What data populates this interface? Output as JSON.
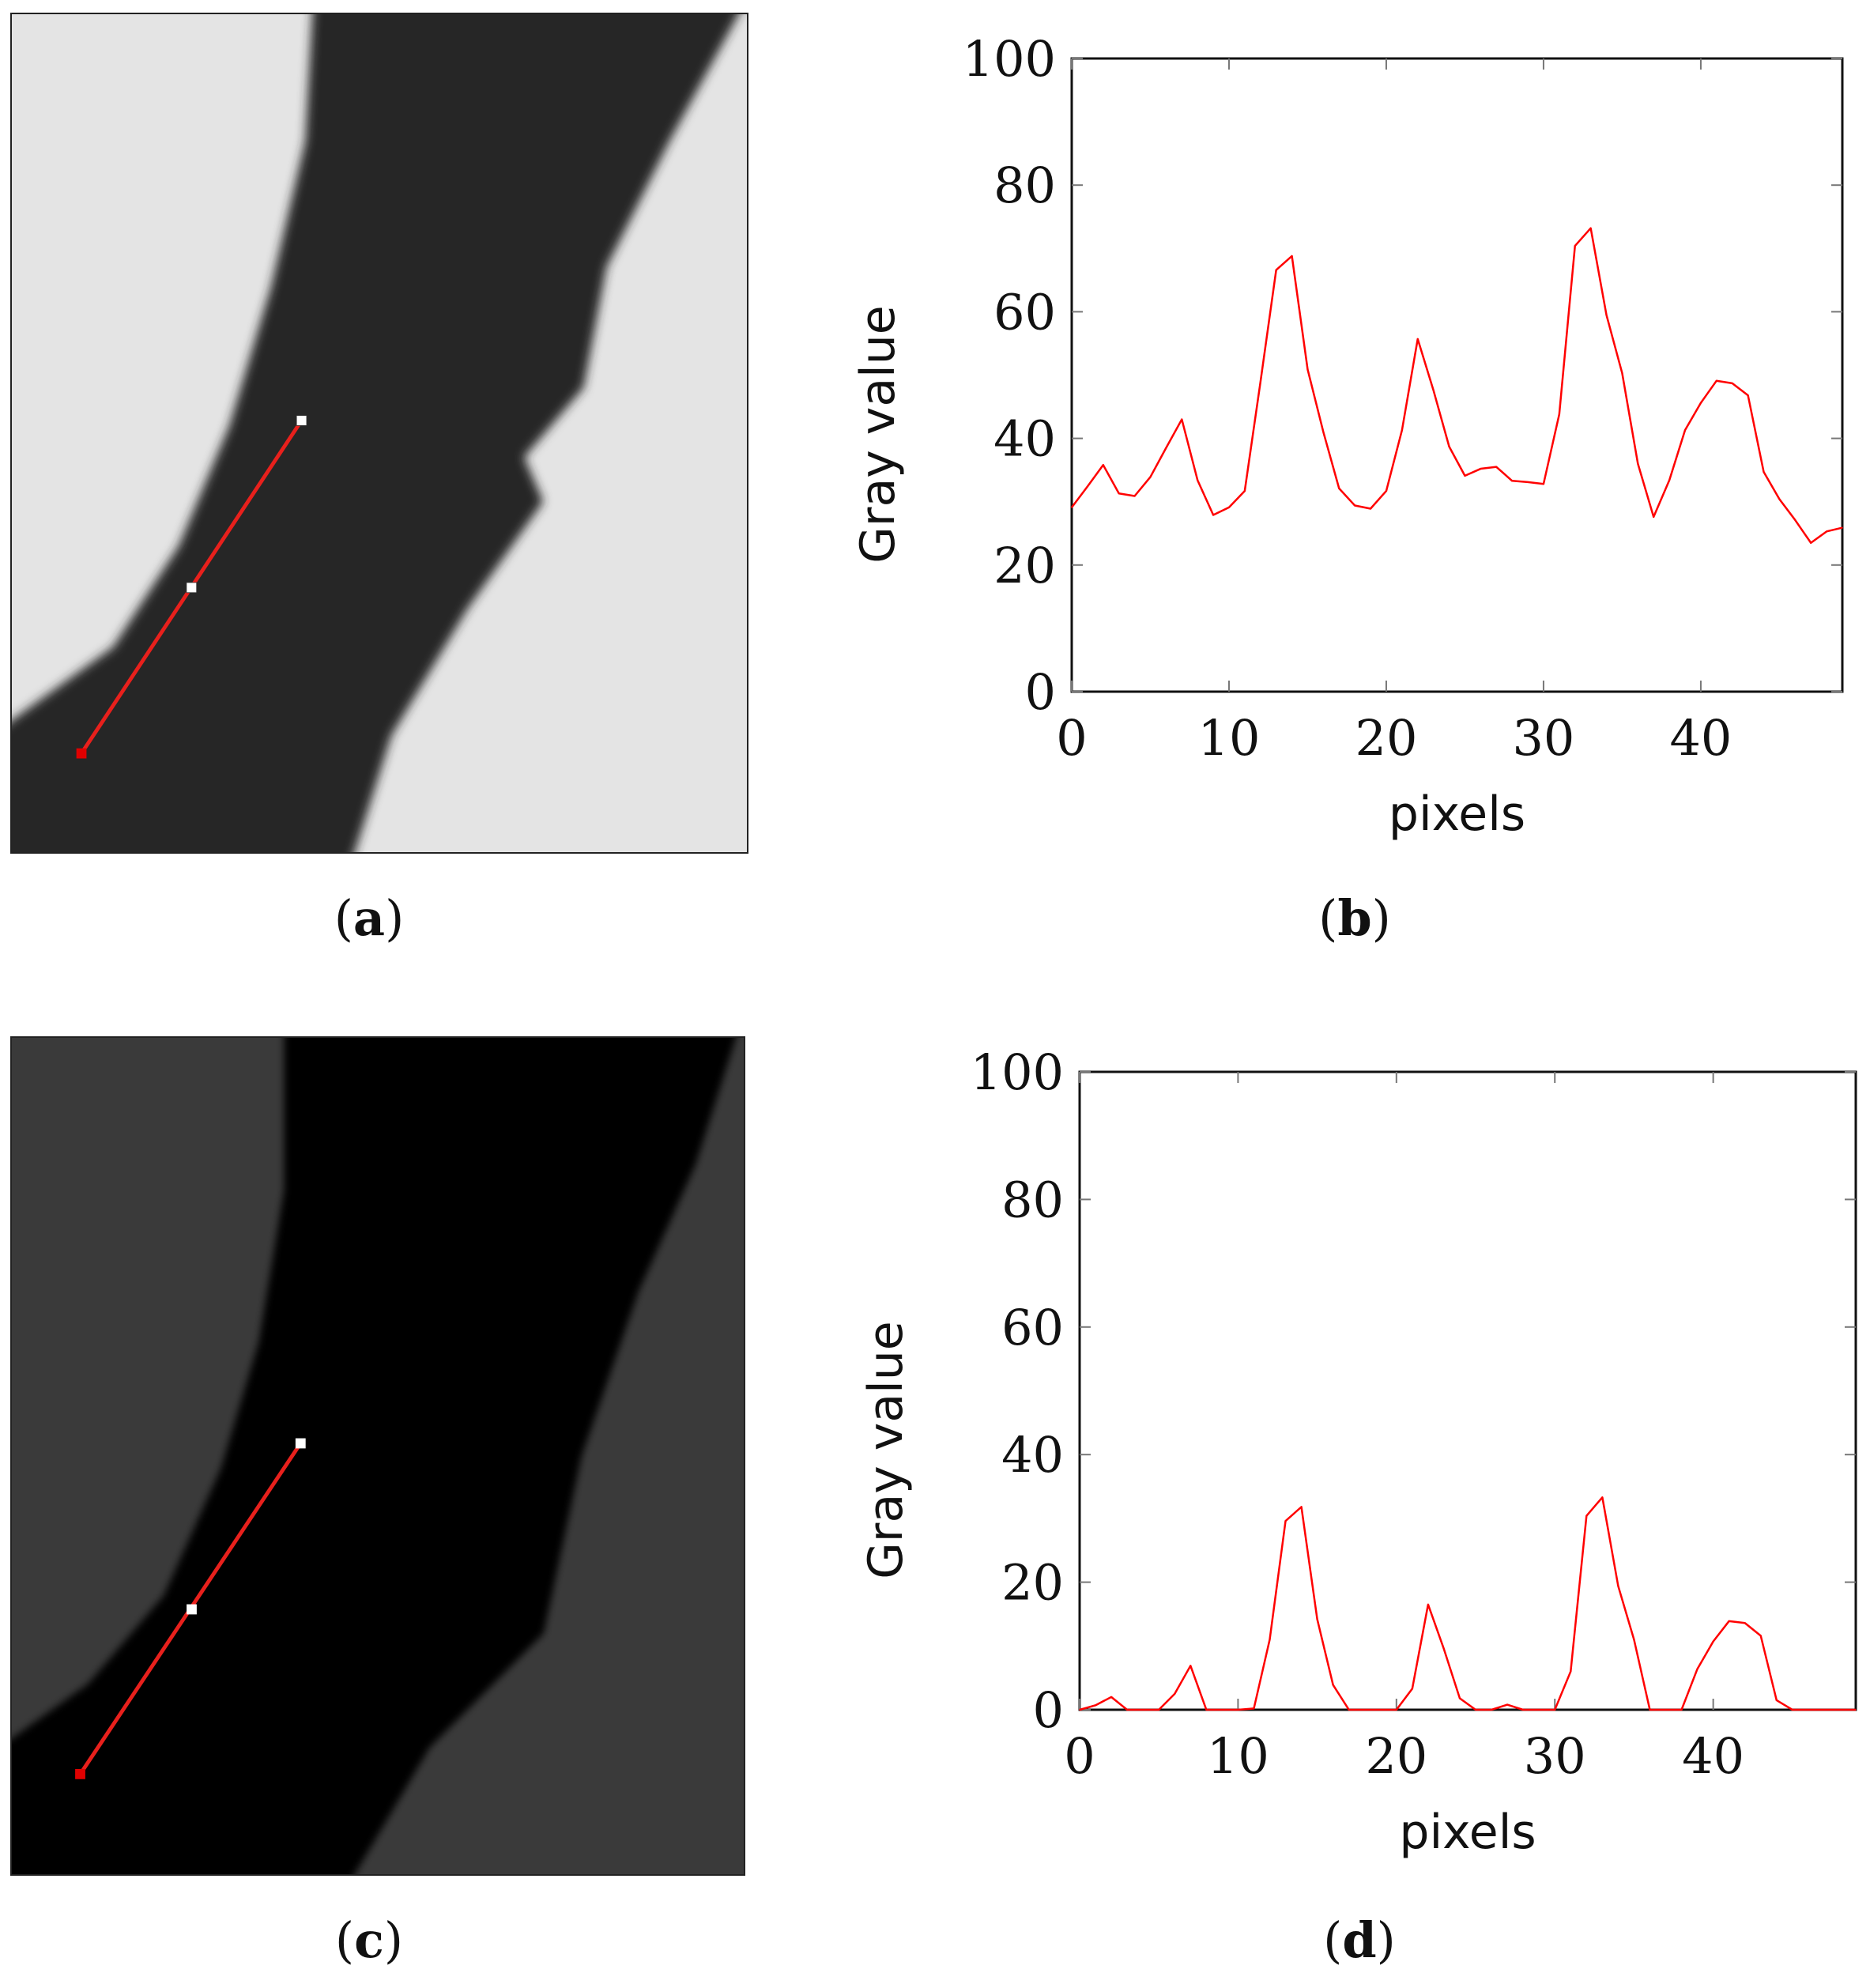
{
  "captions": [
    "a",
    "b",
    "c",
    "d"
  ],
  "colors": {
    "line": "#ff0000",
    "profile_line": "#e8201c",
    "marker_white": "#ffffff",
    "marker_red": "#e00000"
  },
  "images": [
    {
      "panel": "a",
      "background": "#e4e4e4",
      "band": "#262626"
    },
    {
      "panel": "c",
      "background": "#3a3a3a",
      "band": "#060606"
    }
  ],
  "chart_data": [
    {
      "panel": "b",
      "type": "line",
      "xlabel": "pixels",
      "ylabel": "Gray value",
      "xlim": [
        0,
        49
      ],
      "ylim": [
        0,
        100
      ],
      "xticks": [
        0,
        10,
        20,
        30,
        40
      ],
      "yticks": [
        0,
        20,
        40,
        60,
        80,
        100
      ],
      "grid": false,
      "color": "#ff0000",
      "x": [
        0,
        1,
        2,
        3,
        4,
        5,
        6,
        7,
        8,
        9,
        10,
        11,
        12,
        13,
        14,
        15,
        16,
        17,
        18,
        19,
        20,
        21,
        22,
        23,
        24,
        25,
        26,
        27,
        28,
        29,
        30,
        31,
        32,
        33,
        34,
        35,
        36,
        37,
        38,
        39,
        40,
        41,
        42,
        43,
        44,
        45,
        46,
        47,
        48,
        49
      ],
      "y": [
        29.1,
        32.4,
        35.8,
        31.3,
        30.9,
        33.9,
        38.5,
        43.0,
        33.4,
        27.9,
        29.1,
        31.7,
        48.9,
        66.6,
        68.8,
        50.9,
        41.0,
        32.1,
        29.4,
        28.9,
        31.7,
        41.3,
        55.7,
        47.6,
        38.7,
        34.1,
        35.2,
        35.5,
        33.3,
        33.1,
        32.8,
        43.8,
        70.4,
        73.2,
        59.5,
        50.3,
        36.0,
        27.6,
        33.4,
        41.3,
        45.6,
        49.1,
        48.7,
        46.8,
        34.7,
        30.4,
        27.1,
        23.5,
        25.3,
        25.9
      ]
    },
    {
      "panel": "d",
      "type": "line",
      "xlabel": "pixels",
      "ylabel": "Gray value",
      "xlim": [
        0,
        49
      ],
      "ylim": [
        0,
        100
      ],
      "xticks": [
        0,
        10,
        20,
        30,
        40
      ],
      "yticks": [
        0,
        20,
        40,
        60,
        80,
        100
      ],
      "grid": false,
      "color": "#ff0000",
      "x": [
        0,
        1,
        2,
        3,
        4,
        5,
        6,
        7,
        8,
        9,
        10,
        11,
        12,
        13,
        14,
        15,
        16,
        17,
        18,
        19,
        20,
        21,
        22,
        23,
        24,
        25,
        26,
        27,
        28,
        29,
        30,
        31,
        32,
        33,
        34,
        35,
        36,
        37,
        38,
        39,
        40,
        41,
        42,
        43,
        44,
        45,
        46,
        47,
        48,
        49
      ],
      "y": [
        0,
        0.7,
        2.0,
        0,
        0,
        0,
        2.5,
        6.9,
        0,
        0,
        0,
        0.2,
        11.0,
        29.6,
        31.8,
        14.2,
        3.9,
        0,
        0,
        0,
        0,
        3.3,
        16.5,
        9.5,
        1.8,
        0,
        0,
        0.8,
        0,
        0,
        0,
        6.0,
        30.4,
        33.3,
        19.4,
        11.0,
        0,
        0,
        0,
        6.4,
        10.7,
        13.9,
        13.6,
        11.6,
        1.5,
        0,
        0,
        0,
        0,
        0
      ]
    }
  ]
}
